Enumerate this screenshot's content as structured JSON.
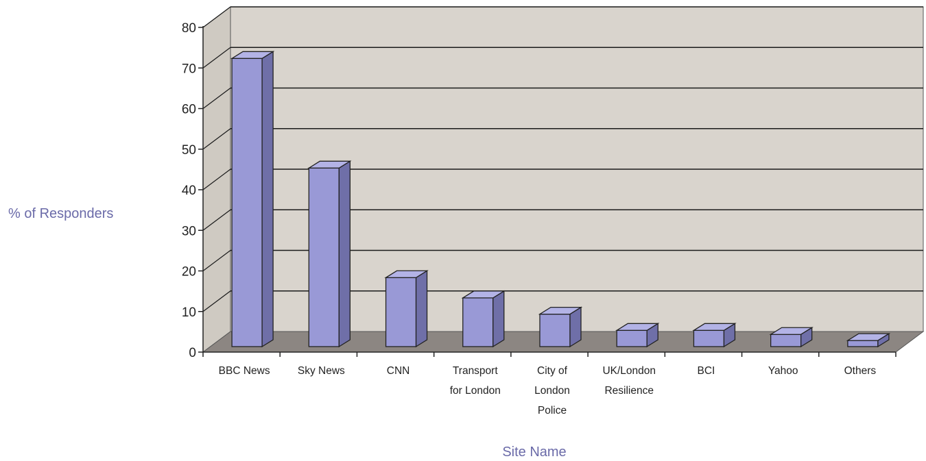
{
  "chart_data": {
    "type": "bar",
    "title": "",
    "xlabel": "Site Name",
    "ylabel": "% of Responders",
    "ylim": [
      0,
      80
    ],
    "yticks": [
      0,
      10,
      20,
      30,
      40,
      50,
      60,
      70,
      80
    ],
    "grid": true,
    "legend": "none",
    "style": "3d-column",
    "categories": [
      [
        "BBC News"
      ],
      [
        "Sky News"
      ],
      [
        "CNN"
      ],
      [
        "Transport",
        "for London"
      ],
      [
        "City of",
        "London",
        "Police"
      ],
      [
        "UK/London",
        "Resilience"
      ],
      [
        "BCI"
      ],
      [
        "Yahoo"
      ],
      [
        "Others"
      ]
    ],
    "values": [
      71,
      44,
      17,
      12,
      8,
      4,
      4,
      3,
      1.5
    ],
    "colors": {
      "bar_front": "#9999d6",
      "bar_side": "#6f6fa8",
      "bar_top": "#b3b3e6",
      "back_wall": "#d9d4cd",
      "side_wall": "#cfcac2",
      "floor": "#8c8682",
      "grid": "#1a1a1a"
    }
  }
}
